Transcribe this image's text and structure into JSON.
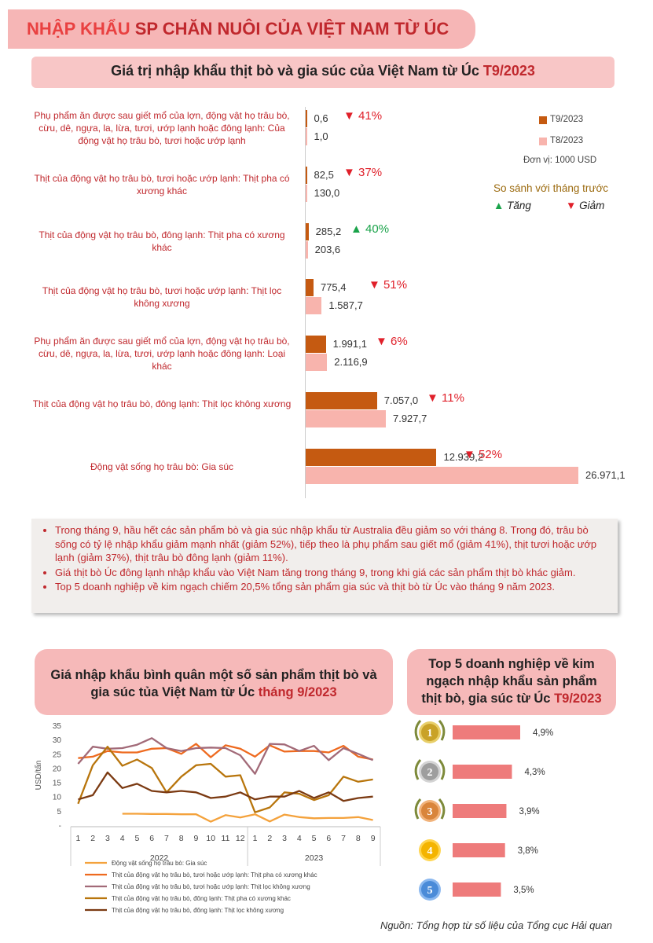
{
  "header": {
    "title_part1": "NHẬP KHẨU",
    "title_part2": " SP CHĂN NUÔI CỦA VIỆT NAM TỪ ÚC"
  },
  "bar_section": {
    "title": "Giá trị nhập khẩu thịt bò và gia súc của Việt Nam từ Úc ",
    "title_highlight": "T9/2023",
    "legend": {
      "s1": "T9/2023",
      "s2": "T8/2023",
      "unit": "Đơn vị: 1000 USD"
    },
    "compare": {
      "title": "So sánh với tháng trước",
      "up": "▲ Tăng",
      "down": "▼ Giảm"
    }
  },
  "notes": [
    "Trong tháng 9, hầu hết các sản phẩm bò và gia súc nhập khẩu từ Australia đều giảm so với tháng 8. Trong đó, trâu bò sống có tỷ lệ nhập khẩu giảm mạnh nhất (giảm 52%), tiếp theo là phụ phẩm sau giết mổ (giảm 41%), thịt tươi hoặc ướp lạnh (giảm 37%), thịt trâu bò đông lạnh (giảm 11%).",
    "Giá thịt bò Úc đông lạnh nhập khẩu vào Việt Nam tăng trong tháng 9, trong khi giá các sản phẩm thịt bò khác giảm.",
    "Top 5 doanh nghiệp về kim ngạch chiếm 20,5% tổng sản phẩm gia súc và thịt bò từ Úc vào tháng 9 năm 2023."
  ],
  "line_section": {
    "title_line1": "Giá nhập khẩu bình quân một số sản phẩm thịt bò và",
    "title_line2": "gia súc tủa Việt Nam từ Úc ",
    "title_highlight": "tháng 9/2023"
  },
  "top5_section": {
    "title_line1": "Top 5 doanh nghiệp về kim",
    "title_line2": "ngạch nhập khẩu sản phẩm",
    "title_line3": "thịt bò, gia súc từ Úc ",
    "title_highlight": "T9/2023"
  },
  "footer": "Nguồn: Tổng hợp từ số liệu của Tổng cục Hải quan",
  "chart_data": [
    {
      "type": "bar",
      "orientation": "horizontal",
      "categories": [
        "Phụ phẩm ăn được sau giết mổ của lợn, động vật họ trâu bò, cừu, dê, ngựa, la, lừa, tươi, ướp lạnh hoặc đông lạnh: Của động vật họ trâu bò, tươi hoặc ướp lạnh",
        "Thịt của động vật họ trâu bò, tươi hoặc ướp lạnh: Thịt pha có xương khác",
        "Thịt của động vật họ trâu bò, đông lạnh: Thịt pha có xương khác",
        "Thịt của động vật họ trâu bò, tươi hoặc ướp lạnh: Thịt lọc không xương",
        "Phụ phẩm ăn được sau giết mổ của lợn, động vật họ trâu bò, cừu, dê, ngựa, la, lừa, tươi, ướp lạnh hoặc đông lạnh: Loại khác",
        "Thịt của động vật họ trâu bò, đông lạnh: Thịt lọc không xương",
        "Động vật sống họ trâu bò: Gia súc"
      ],
      "series": [
        {
          "name": "T9/2023",
          "color": "#c55a11",
          "values": [
            0.6,
            82.5,
            285.2,
            775.4,
            1991.1,
            7057.0,
            12939.2
          ],
          "labels": [
            "0,6",
            "82,5",
            "285,2",
            "775,4",
            "1.991,1",
            "7.057,0",
            "12.939,2"
          ]
        },
        {
          "name": "T8/2023",
          "color": "#f8b4ad",
          "values": [
            1.0,
            130.0,
            203.6,
            1587.7,
            2116.9,
            7927.7,
            26971.1
          ],
          "labels": [
            "1,0",
            "130,0",
            "203,6",
            "1.587,7",
            "2.116,9",
            "7.927,7",
            "26.971,1"
          ]
        }
      ],
      "changes": [
        {
          "dir": "down",
          "text": "▼ 41%"
        },
        {
          "dir": "down",
          "text": "▼ 37%"
        },
        {
          "dir": "up",
          "text": "▲ 40%"
        },
        {
          "dir": "down",
          "text": "▼ 51%"
        },
        {
          "dir": "down",
          "text": "▼ 6%"
        },
        {
          "dir": "down",
          "text": "▼ 11%"
        },
        {
          "dir": "down",
          "text": "▼ 52%"
        }
      ],
      "xlim": [
        0,
        30000
      ]
    },
    {
      "type": "line",
      "ylabel": "USD/tấn",
      "ylim": [
        0,
        35
      ],
      "yticks": [
        "-",
        "5",
        "10",
        "15",
        "20",
        "25",
        "30",
        "35"
      ],
      "x": [
        "1",
        "2",
        "3",
        "4",
        "5",
        "6",
        "7",
        "8",
        "9",
        "10",
        "11",
        "12",
        "1",
        "2",
        "3",
        "4",
        "5",
        "6",
        "7",
        "8",
        "9"
      ],
      "groups": [
        {
          "label": "2022",
          "span": 12
        },
        {
          "label": "2023",
          "span": 9
        }
      ],
      "series": [
        {
          "name": "Động vật sống họ trâu bò: Gia súc",
          "color": "#f4a23c",
          "values": [
            null,
            null,
            null,
            4.0,
            4.0,
            3.9,
            3.9,
            3.8,
            3.8,
            1.2,
            3.5,
            2.7,
            3.8,
            1.3,
            3.7,
            2.8,
            2.4,
            2.5,
            2.5,
            2.8,
            1.8
          ]
        },
        {
          "name": "Thịt của động vật họ trâu bò, tươi hoặc ướp lạnh: Thịt pha có xương khác",
          "color": "#ee6a1f",
          "values": [
            23.5,
            24.0,
            26.0,
            25.5,
            25.5,
            26.8,
            27.0,
            25.0,
            28.5,
            23.8,
            28.0,
            26.8,
            24.0,
            28.0,
            25.8,
            26.0,
            26.0,
            25.5,
            27.8,
            24.0,
            23.0
          ]
        },
        {
          "name": "Thịt của động vật họ trâu bò, tươi hoặc ướp lạnh: Thịt lọc không xương",
          "color": "#a26a78",
          "values": [
            21.5,
            27.5,
            26.8,
            27.0,
            28.2,
            30.5,
            27.0,
            26.0,
            27.0,
            27.2,
            27.0,
            24.5,
            18.0,
            28.5,
            28.3,
            26.0,
            27.8,
            22.8,
            27.0,
            25.0,
            22.8
          ]
        },
        {
          "name": "Thịt của động vật họ trâu bò, đông lạnh: Thịt pha có xương khác",
          "color": "#b8750c",
          "values": [
            7.5,
            21.0,
            27.5,
            20.8,
            23.0,
            20.0,
            11.5,
            17.0,
            21.0,
            21.5,
            17.0,
            17.5,
            4.5,
            6.2,
            11.5,
            11.0,
            8.8,
            10.5,
            17.0,
            15.2,
            16.0
          ]
        },
        {
          "name": "Thịt của động vật họ trâu bò, đông lạnh: Thịt lọc không xương",
          "color": "#7b3a12",
          "values": [
            9.0,
            10.5,
            18.5,
            13.0,
            14.5,
            12.0,
            11.5,
            12.0,
            11.5,
            9.5,
            10.0,
            11.5,
            9.0,
            10.0,
            10.0,
            12.0,
            9.5,
            11.5,
            8.5,
            9.5,
            10.0
          ]
        }
      ]
    },
    {
      "type": "bar",
      "orientation": "horizontal",
      "categories": [
        "1",
        "2",
        "3",
        "4",
        "5"
      ],
      "values": [
        4.9,
        4.3,
        3.9,
        3.8,
        3.5
      ],
      "labels": [
        "4,9%",
        "4,3%",
        "3,9%",
        "3,8%",
        "3,5%"
      ],
      "color": "#ee7b7b"
    }
  ]
}
